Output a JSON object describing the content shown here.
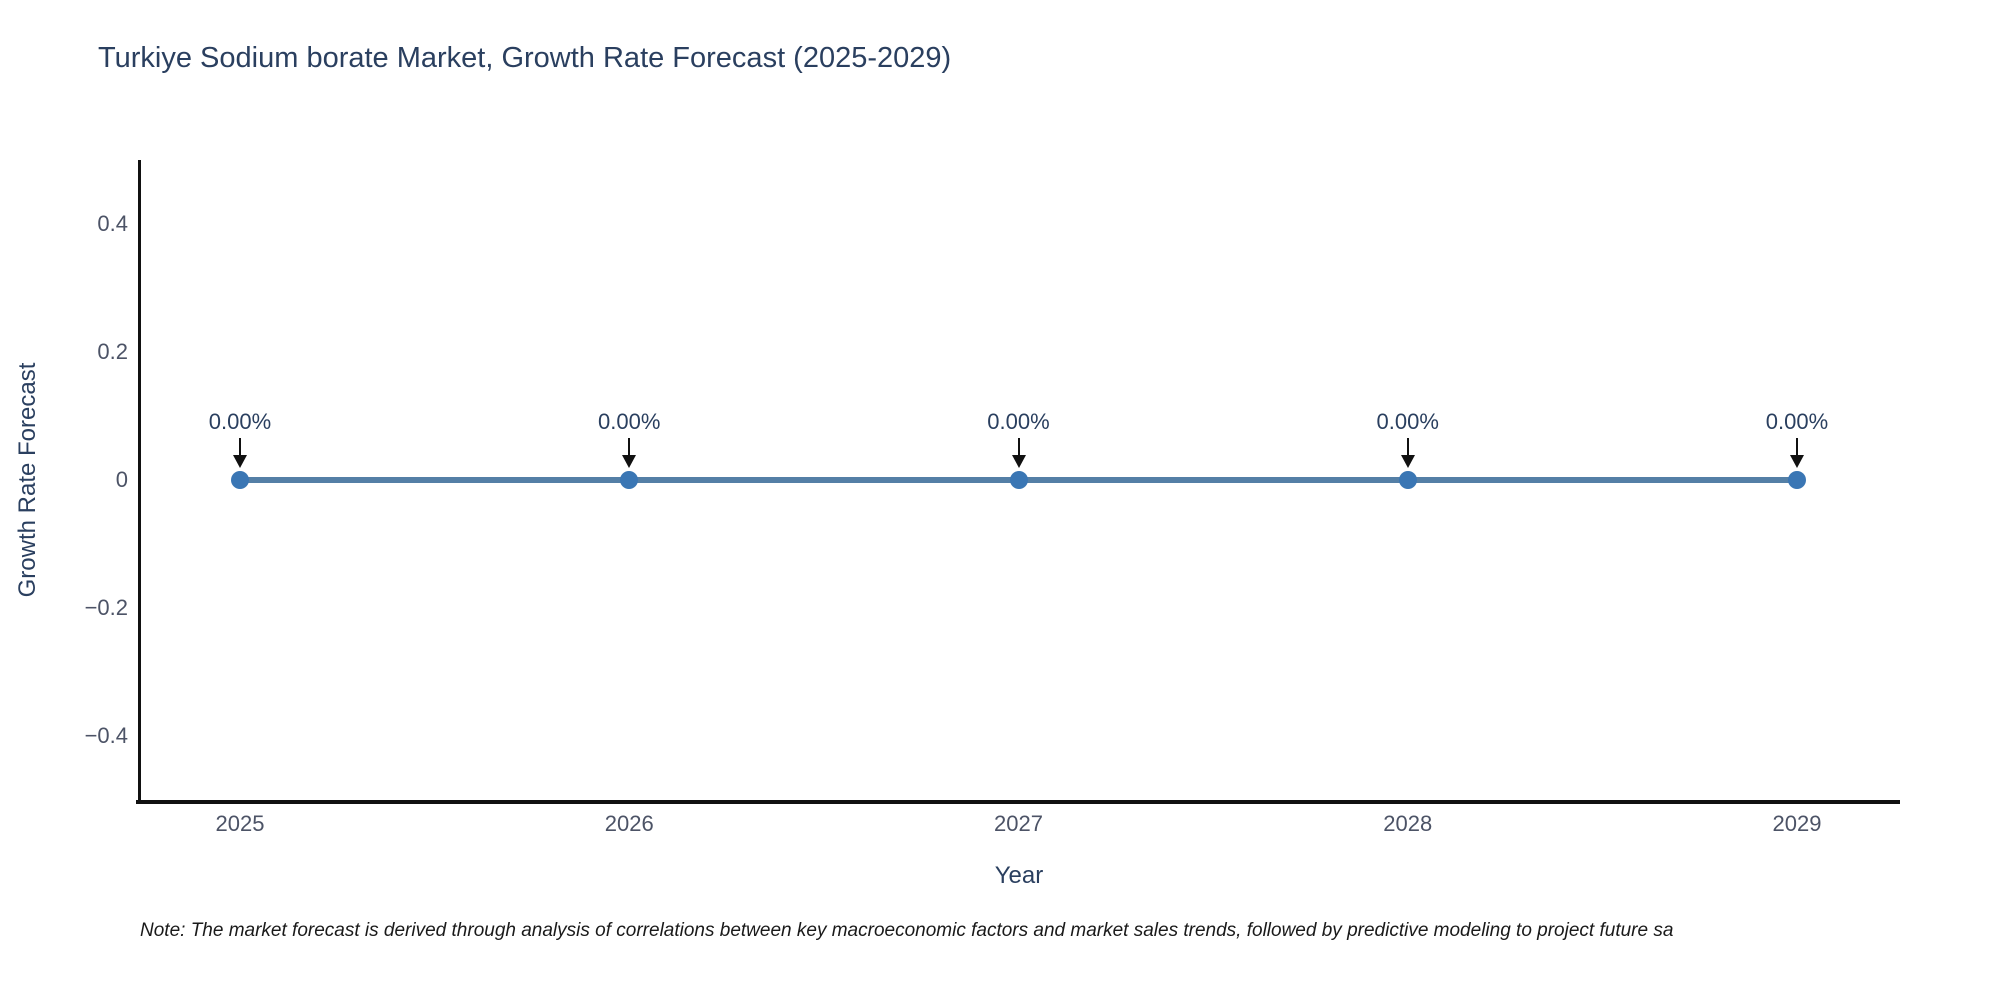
{
  "note": "Note: The market forecast is derived through analysis of correlations between key macroeconomic factors and market sales trends, followed by predictive modeling to project future sa",
  "chart_data": {
    "type": "line",
    "title": "Turkiye Sodium borate Market, Growth Rate Forecast (2025-2029)",
    "xlabel": "Year",
    "ylabel": "Growth Rate Forecast",
    "x": [
      2025,
      2026,
      2027,
      2028,
      2029
    ],
    "series": [
      {
        "name": "Growth Rate Forecast",
        "values": [
          0,
          0,
          0,
          0,
          0
        ]
      }
    ],
    "point_labels": [
      "0.00%",
      "0.00%",
      "0.00%",
      "0.00%",
      "0.00%"
    ],
    "xtick_labels": [
      "2025",
      "2026",
      "2027",
      "2028",
      "2029"
    ],
    "ytick_values": [
      0.4,
      0.2,
      0,
      -0.2,
      -0.4
    ],
    "ytick_labels": [
      "0.4",
      "0.2",
      "0",
      "−0.2",
      "−0.4"
    ],
    "ylim": [
      -0.5,
      0.5
    ],
    "grid": false,
    "legend_position": "none",
    "colors": {
      "line": "#547fa6",
      "marker": "#3a76b4",
      "arrow": "#111111",
      "axis_line": "#111111",
      "title_text": "#2a3f5f",
      "tick_text": "#4c5366",
      "note_text": "#1a1a1a"
    }
  }
}
